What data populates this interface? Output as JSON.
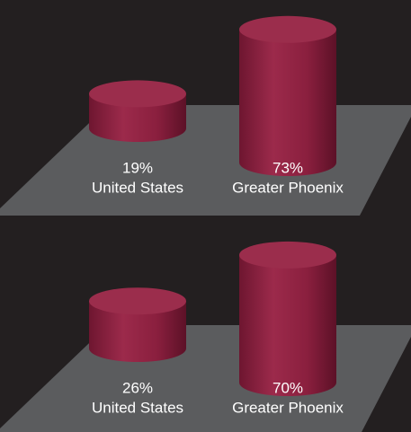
{
  "chart_data": [
    {
      "type": "bar",
      "categories": [
        "United States",
        "Greater Phoenix"
      ],
      "values": [
        19,
        73
      ],
      "value_labels": [
        "19%",
        "73%"
      ],
      "color": "#8c1f3e"
    },
    {
      "type": "bar",
      "categories": [
        "United States",
        "Greater Phoenix"
      ],
      "values": [
        26,
        70
      ],
      "value_labels": [
        "26%",
        "70%"
      ],
      "color": "#8c1f3e"
    }
  ]
}
